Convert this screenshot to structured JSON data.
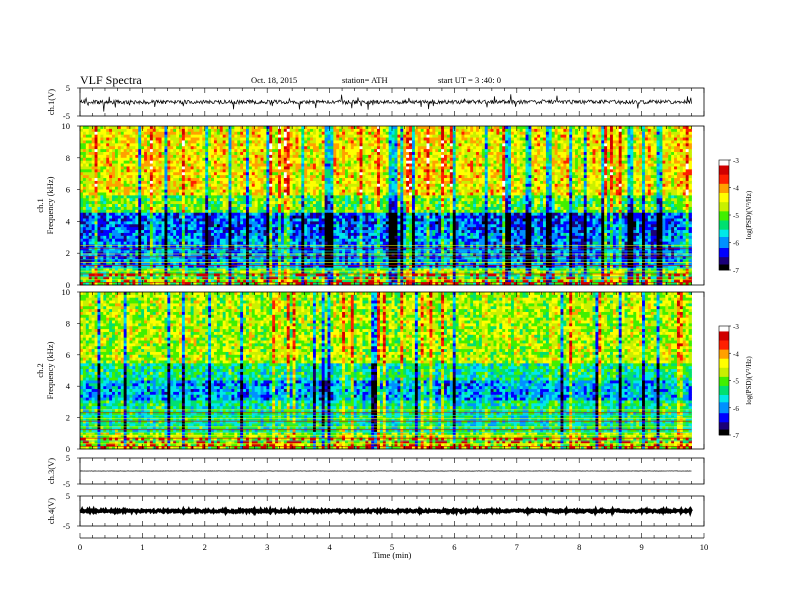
{
  "header": {
    "title": "VLF  Spectra",
    "date": "Oct. 18, 2015",
    "station": "station= ATH",
    "start": "start  UT =  3 :40: 0"
  },
  "chart_data": [
    {
      "panel": "ch1-waveform",
      "type": "line",
      "ylabel": "ch.1(V)",
      "ylim": [
        -5,
        5
      ],
      "yticks": [
        "5",
        "-5"
      ],
      "xlim": [
        0,
        10
      ],
      "signal_end_min": 9.8,
      "baseline": 0,
      "noise_amplitude": 0.7,
      "color": "#000000"
    },
    {
      "panel": "ch1-spectrogram",
      "type": "heatmap",
      "ylabel": "ch.1\nFrequency  (kHz)",
      "ylim": [
        0,
        10
      ],
      "yticks": [
        "0",
        "2",
        "4",
        "6",
        "8",
        "10"
      ],
      "xlim": [
        0,
        10
      ],
      "data_end_min": 9.8,
      "color_scale": {
        "label": "log(PSD)(V²/Hz)",
        "min": -7,
        "max": -3,
        "ticks": [
          "-3",
          "-4",
          "-5",
          "-6",
          "-7"
        ],
        "colors": [
          "#000000",
          "#1a0078",
          "#0000ff",
          "#0090ff",
          "#00e8e8",
          "#00e070",
          "#40f000",
          "#c8f000",
          "#ffff00",
          "#ffa000",
          "#ff2000",
          "#d00000",
          "#ffffff"
        ]
      }
    },
    {
      "panel": "ch2-spectrogram",
      "type": "heatmap",
      "ylabel": "ch.2\nFrequency  (kHz)",
      "ylim": [
        0,
        10
      ],
      "yticks": [
        "0",
        "2",
        "4",
        "6",
        "8",
        "10"
      ],
      "xlim": [
        0,
        10
      ],
      "data_end_min": 9.8,
      "color_scale": {
        "label": "log(PSD)(V²/Hz)",
        "min": -7,
        "max": -3,
        "ticks": [
          "-3",
          "-4",
          "-5",
          "-6",
          "-7"
        ]
      }
    },
    {
      "panel": "ch3-waveform",
      "type": "line",
      "ylabel": "ch.3(V)",
      "ylim": [
        -5,
        5
      ],
      "yticks": [
        "5",
        "-5"
      ],
      "xlim": [
        0,
        10
      ],
      "signal_end_min": 9.8,
      "baseline": 0,
      "noise_amplitude": 0.05
    },
    {
      "panel": "ch4-waveform",
      "type": "line",
      "ylabel": "ch.4(V)",
      "ylim": [
        -5,
        5
      ],
      "yticks": [
        "5",
        "-5"
      ],
      "xlim": [
        0,
        10
      ],
      "signal_end_min": 9.8,
      "baseline": 0,
      "noise_amplitude": 0.35
    }
  ],
  "xaxis": {
    "label": "Time  (min)",
    "ticks": [
      "0",
      "1",
      "2",
      "3",
      "4",
      "5",
      "6",
      "7",
      "8",
      "9",
      "10"
    ]
  }
}
